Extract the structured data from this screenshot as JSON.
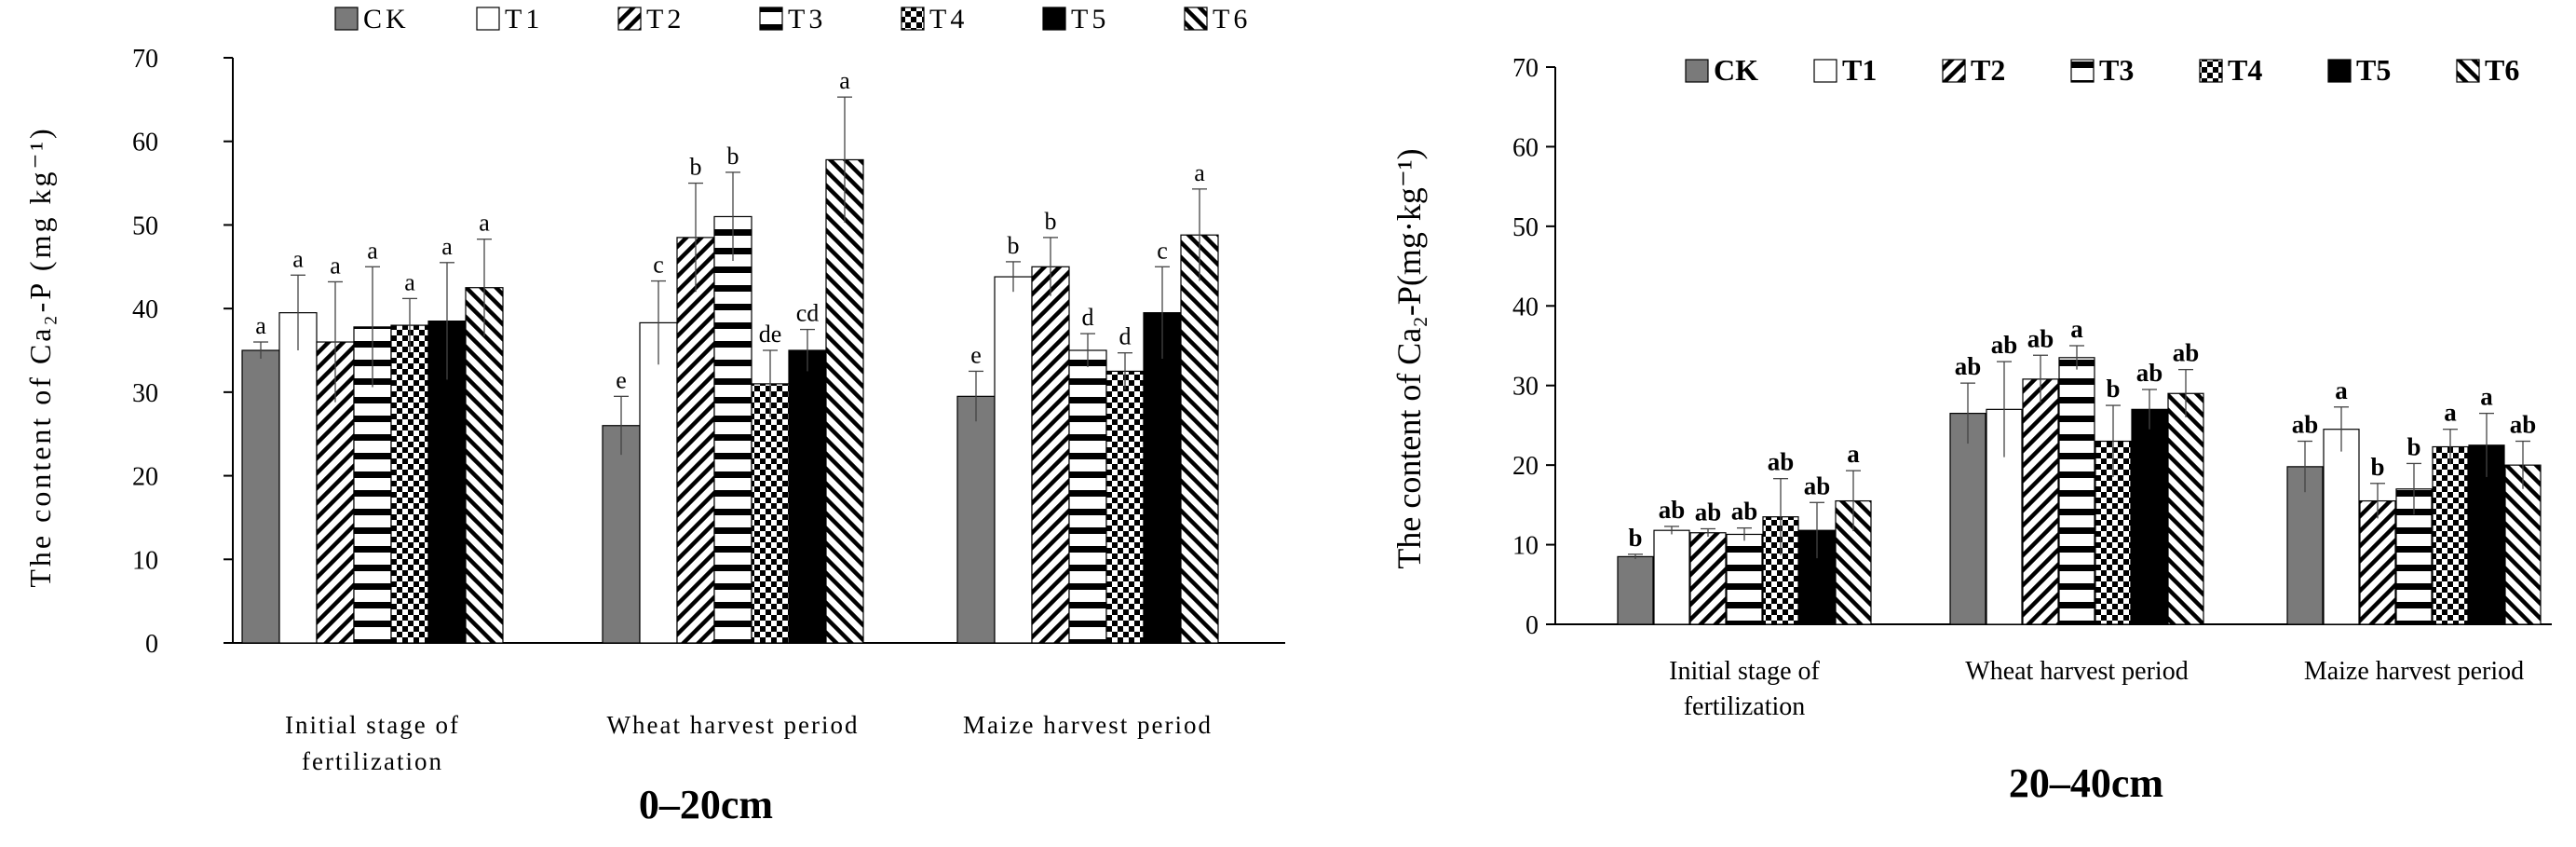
{
  "patterns": [
    "solid-gray",
    "white",
    "diag-right",
    "horiz",
    "checker",
    "solid-black",
    "diag-left"
  ],
  "colors": {
    "ck_gray": "#7a7a7a",
    "black": "#000000",
    "white": "#ffffff"
  },
  "chart_data": [
    {
      "type": "bar",
      "title": "0–20cm",
      "ylabel": "The content of Ca₂-P (mg kg⁻¹)",
      "ylim": [
        0,
        70
      ],
      "yticks": [
        "0",
        "10",
        "20",
        "30",
        "40",
        "50",
        "60",
        "70"
      ],
      "categories": [
        [
          "Initial stage of",
          "fertilization"
        ],
        [
          "Wheat harvest period"
        ],
        [
          "Maize harvest period"
        ]
      ],
      "legend": [
        "CK",
        "T1",
        "T2",
        "T3",
        "T4",
        "T5",
        "T6"
      ],
      "series": [
        {
          "name": "CK",
          "values": [
            35.0,
            26.0,
            29.5
          ],
          "errors": [
            1.0,
            3.5,
            3.0
          ],
          "letters": [
            "a",
            "e",
            "e"
          ]
        },
        {
          "name": "T1",
          "values": [
            39.5,
            38.3,
            43.8
          ],
          "errors": [
            4.5,
            5.0,
            1.8
          ],
          "letters": [
            "a",
            "c",
            "b"
          ]
        },
        {
          "name": "T2",
          "values": [
            36.0,
            48.5,
            45.0
          ],
          "errors": [
            7.2,
            6.5,
            3.5
          ],
          "letters": [
            "a",
            "b",
            "b"
          ]
        },
        {
          "name": "T3",
          "values": [
            37.8,
            51.0,
            35.0
          ],
          "errors": [
            7.2,
            5.3,
            2.0
          ],
          "letters": [
            "a",
            "b",
            "d"
          ]
        },
        {
          "name": "T4",
          "values": [
            38.0,
            31.0,
            32.5
          ],
          "errors": [
            3.2,
            4.0,
            2.2
          ],
          "letters": [
            "a",
            "de",
            "d"
          ]
        },
        {
          "name": "T5",
          "values": [
            38.5,
            35.0,
            39.5
          ],
          "errors": [
            7.0,
            2.5,
            5.5
          ],
          "letters": [
            "a",
            "cd",
            "c"
          ]
        },
        {
          "name": "T6",
          "values": [
            42.5,
            57.8,
            48.8
          ],
          "errors": [
            5.8,
            7.5,
            5.5
          ],
          "letters": [
            "a",
            "a",
            "a"
          ]
        }
      ]
    },
    {
      "type": "bar",
      "title": "20–40cm",
      "ylabel": "The content of Ca₂-P(mg·kg⁻¹)",
      "ylim": [
        0,
        70
      ],
      "yticks": [
        "0",
        "10",
        "20",
        "30",
        "40",
        "50",
        "60",
        "70"
      ],
      "categories": [
        [
          "Initial stage of",
          "fertilization"
        ],
        [
          "Wheat harvest period"
        ],
        [
          "Maize harvest period"
        ]
      ],
      "legend": [
        "CK",
        "T1",
        "T2",
        "T3",
        "T4",
        "T5",
        "T6"
      ],
      "series": [
        {
          "name": "CK",
          "values": [
            8.5,
            26.5,
            19.8
          ],
          "errors": [
            0.3,
            3.8,
            3.2
          ],
          "letters": [
            "b",
            "ab",
            "ab"
          ]
        },
        {
          "name": "T1",
          "values": [
            11.8,
            27.0,
            24.5
          ],
          "errors": [
            0.5,
            6.0,
            2.8
          ],
          "letters": [
            "ab",
            "ab",
            "a"
          ]
        },
        {
          "name": "T2",
          "values": [
            11.5,
            30.8,
            15.5
          ],
          "errors": [
            0.5,
            3.0,
            2.2
          ],
          "letters": [
            "ab",
            "ab",
            "b"
          ]
        },
        {
          "name": "T3",
          "values": [
            11.3,
            33.5,
            17.0
          ],
          "errors": [
            0.8,
            1.5,
            3.2
          ],
          "letters": [
            "ab",
            "a",
            "b"
          ]
        },
        {
          "name": "T4",
          "values": [
            13.5,
            23.0,
            22.3
          ],
          "errors": [
            4.8,
            4.5,
            2.2
          ],
          "letters": [
            "ab",
            "b",
            "a"
          ]
        },
        {
          "name": "T5",
          "values": [
            11.8,
            27.0,
            22.5
          ],
          "errors": [
            3.5,
            2.5,
            4.0
          ],
          "letters": [
            "ab",
            "ab",
            "a"
          ]
        },
        {
          "name": "T6",
          "values": [
            15.5,
            29.0,
            20.0
          ],
          "errors": [
            3.8,
            3.0,
            3.0
          ],
          "letters": [
            "a",
            "ab",
            "ab"
          ]
        }
      ]
    }
  ]
}
